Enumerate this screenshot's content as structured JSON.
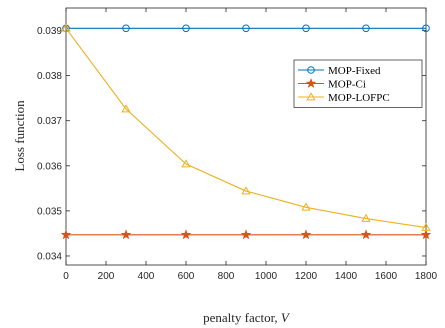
{
  "chart_data": {
    "type": "line",
    "xlabel_text": "penalty factor, ",
    "xlabel_var": "V",
    "ylabel": "Loss function",
    "xlim": [
      0,
      1800
    ],
    "ylim": [
      0.0338,
      0.0395
    ],
    "x_ticks": [
      0,
      200,
      400,
      600,
      800,
      1000,
      1200,
      1400,
      1600,
      1800
    ],
    "x_tick_labels": [
      "0",
      "200",
      "400",
      "600",
      "800",
      "1000",
      "1200",
      "1400",
      "1600",
      "1800"
    ],
    "y_ticks": [
      0.034,
      0.035,
      0.036,
      0.037,
      0.038,
      0.039
    ],
    "y_tick_labels": [
      "0.034",
      "0.035",
      "0.036",
      "0.037",
      "0.038",
      "0.039"
    ],
    "grid": false,
    "legend_position": "top-right",
    "x": [
      0,
      300,
      600,
      900,
      1200,
      1500,
      1800
    ],
    "series": [
      {
        "name": "MOP-Fixed",
        "marker": "circle",
        "color": "#0072BD",
        "values": [
          0.03905,
          0.03905,
          0.03905,
          0.03905,
          0.03905,
          0.03905,
          0.03905
        ]
      },
      {
        "name": "MOP-Ci",
        "marker": "star",
        "color": "#D95319",
        "values": [
          0.03447,
          0.03447,
          0.03447,
          0.03447,
          0.03447,
          0.03447,
          0.03447
        ]
      },
      {
        "name": "MOP-LOFPC",
        "marker": "triangle",
        "color": "#EDB120",
        "values": [
          0.03905,
          0.03726,
          0.03604,
          0.03544,
          0.03508,
          0.03483,
          0.03463
        ]
      }
    ]
  }
}
